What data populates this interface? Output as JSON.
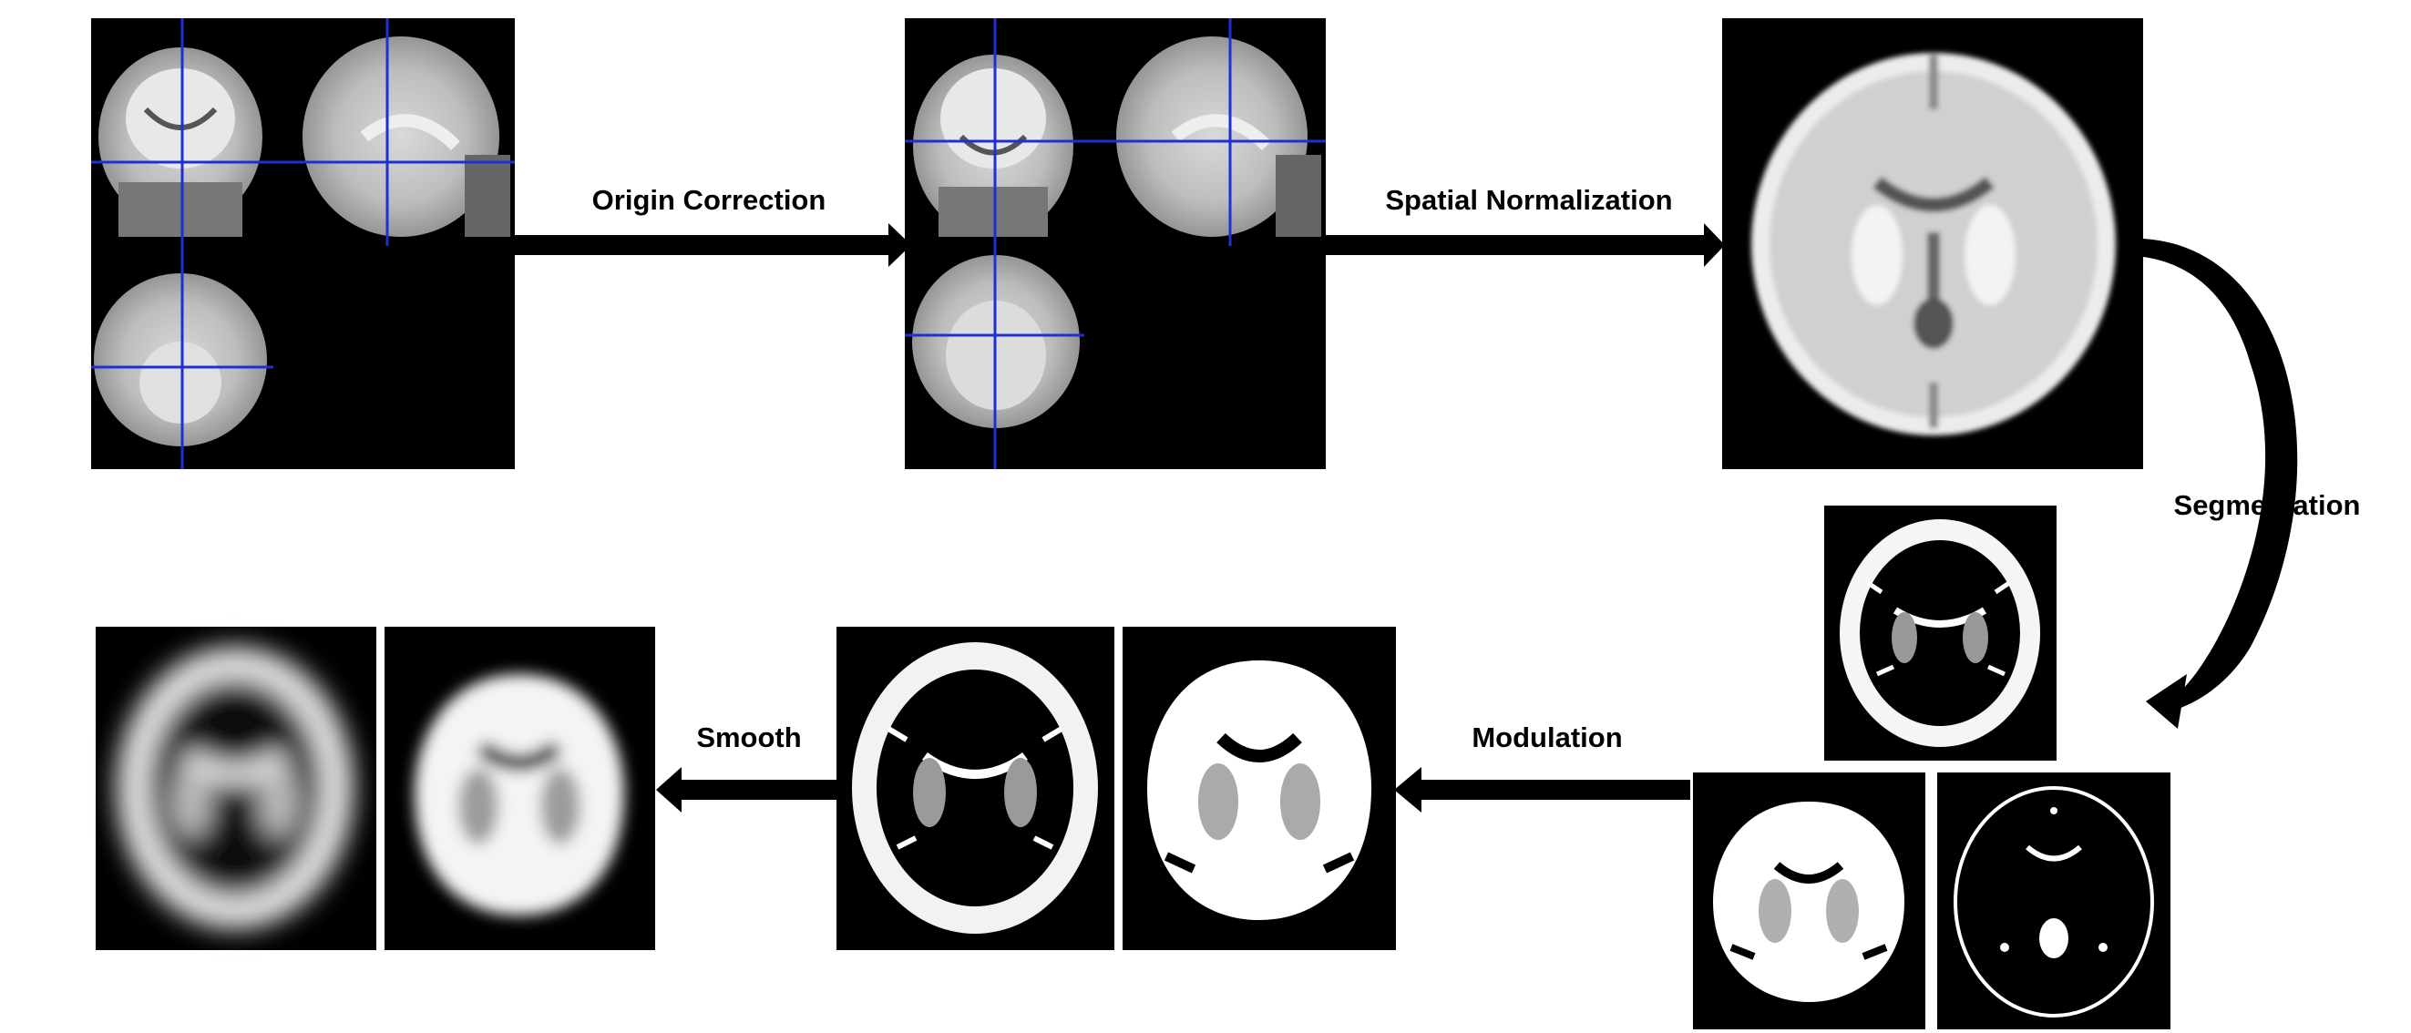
{
  "steps": {
    "origin_correction": "Origin Correction",
    "spatial_normalization": "Spatial Normalization",
    "segmentation": "Segmentation",
    "modulation": "Modulation",
    "smooth": "Smooth"
  },
  "panels": {
    "raw_mri": "raw-mri-triplanar",
    "origin_corrected": "origin-corrected-triplanar",
    "normalized": "normalized-brain",
    "segmented_gm": "segmented-gray-matter",
    "segmented_wm": "segmented-white-matter",
    "segmented_csf": "segmented-csf",
    "modulated_gm": "modulated-gray-matter",
    "modulated_wm": "modulated-white-matter",
    "smoothed_gm": "smoothed-gray-matter",
    "smoothed_wm": "smoothed-white-matter"
  },
  "colors": {
    "background": "#ffffff",
    "panel": "#000000",
    "crosshair": "#1f2fd0",
    "arrow": "#000000",
    "text": "#000000"
  }
}
